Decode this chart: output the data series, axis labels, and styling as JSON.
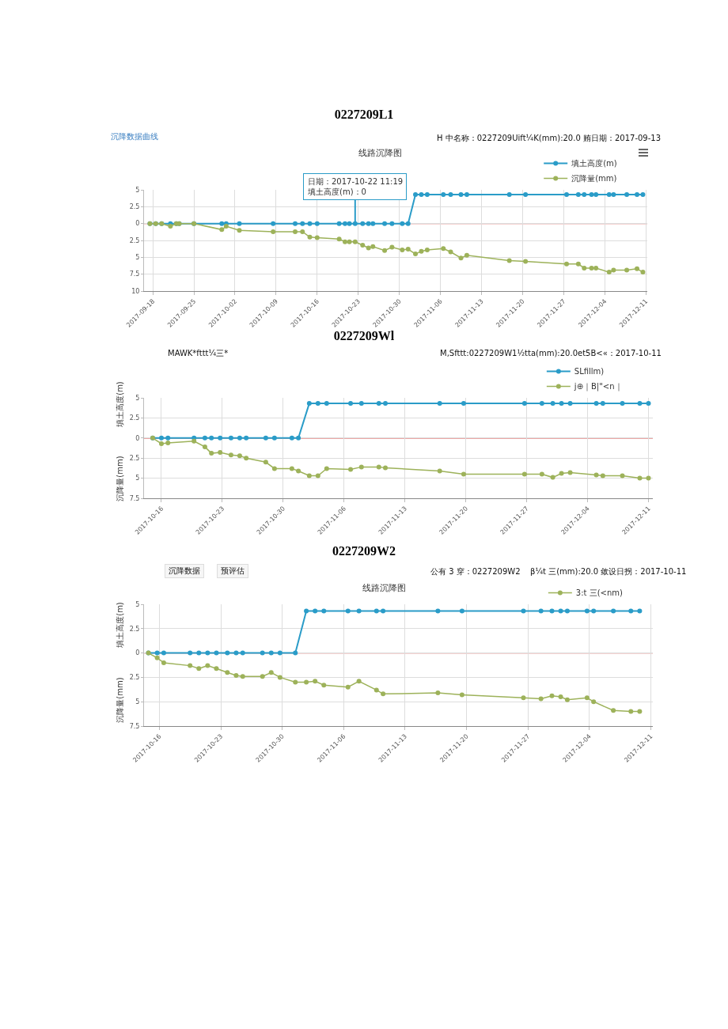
{
  "chart_data": [
    {
      "type": "line",
      "title": "0227209L1",
      "subtitle": "线路沉降图",
      "annotations": [
        "沉降数据曲线",
        "H 中名称：0227209Uift¼K(mm):20.0 贿日期：2017-09-13",
        {
          "text": "日期：2017-10-22 11:19\n填土高度(m)：0",
          "x": "2017-10-22T11:19",
          "y": 0
        }
      ],
      "x": [
        "2017-09-17T12:00",
        "2017-09-18T12:00",
        "2017-09-19T12:00",
        "2017-09-21",
        "2017-09-22",
        "2017-09-22T12:00",
        "2017-09-25",
        "2017-09-29T18:00",
        "2017-09-30T12:00",
        "2017-10-02T18:00",
        "2017-10-08T12:00",
        "2017-10-12T06:00",
        "2017-10-13T12:00",
        "2017-10-14T18:00",
        "2017-10-16",
        "2017-10-19T18:00",
        "2017-10-20T18:00",
        "2017-10-21T12:00",
        "2017-10-22T11:19",
        "2017-10-23T18:00",
        "2017-10-24T18:00",
        "2017-10-25T12:00",
        "2017-10-27T12:00",
        "2017-10-28T18:00",
        "2017-10-30T12:00",
        "2017-10-31T12:00",
        "2017-11-01T18:00",
        "2017-11-02T18:00",
        "2017-11-03T18:00",
        "2017-11-06T12:00",
        "2017-11-07T18:00",
        "2017-11-09T12:00",
        "2017-11-10T12:00",
        "2017-11-17T18:00",
        "2017-11-20T12:00",
        "2017-11-27T12:00",
        "2017-11-29T12:00",
        "2017-11-30T12:00",
        "2017-12-01T18:00",
        "2017-12-02T12:00",
        "2017-12-04T18:00",
        "2017-12-05T12:00",
        "2017-12-07T18:00",
        "2017-12-09T12:00",
        "2017-12-10T12:00"
      ],
      "series": [
        {
          "name": "填土高度(m)",
          "color": "#2a9cc8",
          "values": [
            0,
            0,
            0,
            0,
            0,
            0,
            0,
            0,
            0,
            0,
            0,
            0,
            0,
            0,
            0,
            0,
            0,
            0,
            0,
            0,
            0,
            0,
            0,
            0,
            0,
            0,
            4.3,
            4.3,
            4.3,
            4.3,
            4.3,
            4.3,
            4.3,
            4.3,
            4.3,
            4.3,
            4.3,
            4.3,
            4.3,
            4.3,
            4.3,
            4.3,
            4.3,
            4.3,
            4.3
          ]
        },
        {
          "name": "沉降量(mm)",
          "color": "#9db25a",
          "values": [
            0,
            0,
            0,
            -0.4,
            0,
            0,
            0,
            -0.9,
            -0.4,
            -1.0,
            -1.2,
            -1.2,
            -1.2,
            -2.0,
            -2.1,
            -2.3,
            -2.7,
            -2.7,
            -2.7,
            -3.2,
            -3.6,
            -3.4,
            -4.0,
            -3.5,
            -3.9,
            -3.8,
            -4.5,
            -4.1,
            -3.9,
            -3.7,
            -4.2,
            -5.1,
            -4.7,
            -5.5,
            -5.6,
            -6.0,
            -6.0,
            -6.6,
            -6.6,
            -6.6,
            -7.2,
            -6.9,
            -6.9,
            -6.7,
            -7.2
          ]
        }
      ],
      "xlim": [
        "2017-09-16T12:00",
        "2017-12-11T06:00"
      ],
      "xticks": [
        "2017-09-18",
        "2017-09-25",
        "2017-10-02",
        "2017-10-09",
        "2017-10-16",
        "2017-10-23",
        "2017-10-30",
        "2017-11-06",
        "2017-11-13",
        "2017-11-20",
        "2017-11-27",
        "2017-12-04",
        "2017-12-11"
      ],
      "ylim": [
        -10,
        5
      ],
      "yticks": [
        5,
        2.5,
        0,
        {
          "value": -2.5,
          "label": "2.5"
        },
        {
          "value": -5,
          "label": "5"
        },
        {
          "value": -7.5,
          "label": "7.5"
        },
        {
          "value": -10,
          "label": "10"
        }
      ],
      "ref_lines": [
        {
          "axis": "y",
          "value": 0,
          "color": "#d9534f"
        }
      ],
      "grid": true,
      "legend": "top right",
      "marker": "circle"
    },
    {
      "type": "line",
      "title": "0227209Wl",
      "ylabel": "填土高度(m)",
      "y2label": "沉降量(mm)",
      "annotations": [
        "MAWK*fttt¼三*",
        "M,Sfttt:0227209W1½tta(mm):20.0et5B<«：2017-10-11"
      ],
      "x": [
        "2017-10-15",
        "2017-10-16",
        "2017-10-16T18:00",
        "2017-10-19T18:00",
        "2017-10-21",
        "2017-10-21T18:00",
        "2017-10-22T18:00",
        "2017-10-24",
        "2017-10-25",
        "2017-10-25T18:00",
        "2017-10-28",
        "2017-10-29",
        "2017-10-31",
        "2017-10-31T18:00",
        "2017-11-02",
        "2017-11-03",
        "2017-11-04",
        "2017-11-06T18:00",
        "2017-11-08",
        "2017-11-10",
        "2017-11-10T18:00",
        "2017-11-17",
        "2017-11-19T18:00",
        "2017-11-26T18:00",
        "2017-11-28T18:00",
        "2017-11-30",
        "2017-12-01",
        "2017-12-02",
        "2017-12-05",
        "2017-12-05T18:00",
        "2017-12-08",
        "2017-12-10",
        "2017-12-11"
      ],
      "series": [
        {
          "name": "SLfillm)",
          "color": "#2a9cc8",
          "values": [
            0,
            0,
            0,
            0,
            0,
            0,
            0,
            0,
            0,
            0,
            0,
            0,
            0,
            0,
            4.3,
            4.3,
            4.3,
            4.3,
            4.3,
            4.3,
            4.3,
            4.3,
            4.3,
            4.3,
            4.3,
            4.3,
            4.3,
            4.3,
            4.3,
            4.3,
            4.3,
            4.3,
            4.3
          ]
        },
        {
          "name": "j⊕｜B|\"<n｜",
          "color": "#9db25a",
          "values": [
            0,
            -0.7,
            -0.6,
            -0.4,
            -1.1,
            -1.9,
            -1.8,
            -2.1,
            -2.2,
            -2.5,
            -3.0,
            -3.8,
            -3.8,
            -4.1,
            -4.7,
            -4.7,
            -3.8,
            -3.9,
            -3.6,
            -3.6,
            -3.7,
            -4.1,
            -4.5,
            -4.5,
            -4.5,
            -4.9,
            -4.4,
            -4.3,
            -4.6,
            -4.7,
            -4.7,
            -5.0,
            -5.0
          ]
        }
      ],
      "xlim": [
        "2017-10-14",
        "2017-12-11T12:00"
      ],
      "xticks": [
        "2017-10-16",
        "2017-10-23",
        "2017-10-30",
        "2017-11-06",
        "2017-11-13",
        "2017-11-20",
        "2017-11-27",
        "2017-12-04",
        "2017-12-11"
      ],
      "ylim": [
        -7.5,
        5
      ],
      "yticks": [
        5,
        2.5,
        0,
        {
          "value": -2.5,
          "label": "2.5"
        },
        {
          "value": -5,
          "label": "5"
        },
        {
          "value": -7.5,
          "label": "7.5"
        }
      ],
      "ref_lines": [
        {
          "axis": "y",
          "value": 0,
          "color": "#d9534f"
        }
      ],
      "grid": true,
      "legend": "top right",
      "marker": "circle"
    },
    {
      "type": "line",
      "title": "0227209W2",
      "subtitle": "线路沉降图",
      "ylabel": "填土高度(m)",
      "y2label": "沉降量(mm)",
      "annotations": [
        "沉降数据",
        "预评估",
        "公有 3 穿：0227209W2",
        "β¼t 三(mm):20.0 敛设日拐：2017-10-11"
      ],
      "x": [
        "2017-10-14T18:00",
        "2017-10-15T18:00",
        "2017-10-16T12:00",
        "2017-10-19T12:00",
        "2017-10-20T12:00",
        "2017-10-21T12:00",
        "2017-10-22T12:00",
        "2017-10-23T18:00",
        "2017-10-24T18:00",
        "2017-10-25T12:00",
        "2017-10-27T18:00",
        "2017-10-28T18:00",
        "2017-10-29T18:00",
        "2017-10-31T12:00",
        "2017-11-01T18:00",
        "2017-11-02T18:00",
        "2017-11-03T18:00",
        "2017-11-06T12:00",
        "2017-11-07T18:00",
        "2017-11-09T18:00",
        "2017-11-10T12:00",
        "2017-11-16T18:00",
        "2017-11-19T12:00",
        "2017-11-26T12:00",
        "2017-11-28T12:00",
        "2017-11-29T18:00",
        "2017-11-30T18:00",
        "2017-12-01T12:00",
        "2017-12-03T18:00",
        "2017-12-04T12:00",
        "2017-12-06T18:00",
        "2017-12-08T18:00",
        "2017-12-09T18:00"
      ],
      "series": [
        {
          "color": "#2a9cc8",
          "values": [
            0,
            0,
            0,
            0,
            0,
            0,
            0,
            0,
            0,
            0,
            0,
            0,
            0,
            0,
            4.3,
            4.3,
            4.3,
            4.3,
            4.3,
            4.3,
            4.3,
            4.3,
            4.3,
            4.3,
            4.3,
            4.3,
            4.3,
            4.3,
            4.3,
            4.3,
            4.3,
            4.3,
            4.3
          ]
        },
        {
          "name": "3:t 三(<nm)",
          "color": "#9db25a",
          "values": [
            0,
            -0.5,
            -1.0,
            -1.3,
            -1.6,
            -1.3,
            -1.6,
            -2.0,
            -2.3,
            -2.4,
            -2.4,
            -2.0,
            -2.5,
            -3.0,
            -3.0,
            -2.9,
            -3.3,
            -3.5,
            -2.9,
            -3.8,
            -4.2,
            -4.1,
            -4.3,
            -4.6,
            -4.7,
            -4.4,
            -4.5,
            -4.8,
            -4.6,
            -5.0,
            -5.9,
            -6.0,
            -6.0
          ]
        }
      ],
      "xlim": [
        "2017-10-14T06:00",
        "2017-12-11T06:00"
      ],
      "xticks": [
        "2017-10-16",
        "2017-10-23",
        "2017-10-30",
        "2017-11-06",
        "2017-11-13",
        "2017-11-20",
        "2017-11-27",
        "2017-12-04",
        "2017-12-11"
      ],
      "ylim": [
        -7.5,
        5
      ],
      "yticks": [
        5,
        2.5,
        0,
        {
          "value": -2.5,
          "label": "2.5"
        },
        {
          "value": -5,
          "label": "5"
        },
        {
          "value": -7.5,
          "label": "7.5"
        }
      ],
      "ref_lines": [
        {
          "axis": "y",
          "value": 0,
          "color": "#d9534f"
        }
      ],
      "grid": true,
      "legend": "top right",
      "marker": "circle"
    }
  ]
}
